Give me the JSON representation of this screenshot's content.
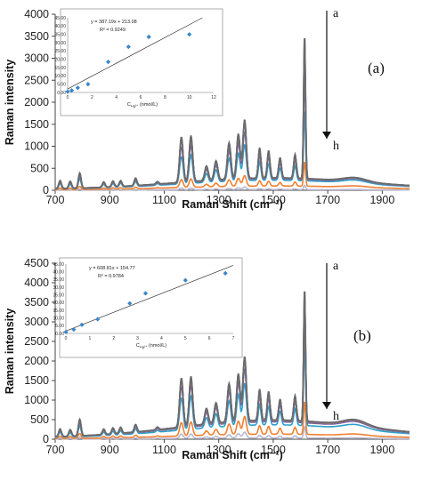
{
  "chart_data": [
    {
      "type": "line",
      "panel_label": "(a)",
      "xlabel": "Raman Shift (cm⁻¹)",
      "ylabel": "Raman intensity",
      "xlim": [
        700,
        2000
      ],
      "ylim": [
        0,
        4000
      ],
      "x_ticks": [
        "700",
        "900",
        "1100",
        "1300",
        "1500",
        "1700",
        "1900"
      ],
      "y_ticks": [
        "0",
        "500",
        "1000",
        "1500",
        "2000",
        "2500",
        "3000",
        "3500",
        "4000"
      ],
      "arrow_top": "a",
      "arrow_bottom": "h",
      "peaks_cm": [
        718,
        755,
        790,
        878,
        912,
        940,
        995,
        1075,
        1163,
        1198,
        1255,
        1290,
        1338,
        1372,
        1395,
        1450,
        1483,
        1525,
        1580,
        1615
      ],
      "series": [
        {
          "color": "#b8b8d0",
          "peak_heights": [
            10,
            8,
            20,
            8,
            8,
            8,
            8,
            4,
            40,
            40,
            12,
            15,
            30,
            40,
            60,
            25,
            20,
            15,
            18,
            100
          ],
          "baseline": 15
        },
        {
          "color": "#f08030",
          "peak_heights": [
            40,
            35,
            70,
            25,
            30,
            30,
            35,
            12,
            180,
            190,
            60,
            80,
            150,
            180,
            240,
            120,
            110,
            80,
            95,
            560
          ],
          "baseline": 90
        },
        {
          "color": "#2ca0c8",
          "peak_heights": [
            120,
            100,
            220,
            80,
            90,
            90,
            110,
            40,
            620,
            640,
            200,
            270,
            520,
            620,
            820,
            420,
            380,
            280,
            330,
            1620
          ],
          "baseline": 210
        },
        {
          "color": "#7b5ea7",
          "peak_heights": [
            150,
            130,
            280,
            100,
            110,
            110,
            140,
            50,
            820,
            840,
            270,
            350,
            670,
            820,
            1080,
            550,
            500,
            370,
            440,
            2420
          ],
          "baseline": 240
        },
        {
          "color": "#8fb53c",
          "peak_heights": [
            170,
            150,
            320,
            115,
            125,
            125,
            160,
            55,
            960,
            980,
            310,
            410,
            780,
            950,
            1250,
            640,
            580,
            430,
            510,
            2980
          ],
          "baseline": 255
        },
        {
          "color": "#c8403c",
          "peak_heights": [
            175,
            155,
            330,
            118,
            128,
            128,
            165,
            57,
            990,
            1010,
            320,
            420,
            800,
            980,
            1290,
            660,
            600,
            445,
            525,
            3150
          ],
          "baseline": 258
        },
        {
          "color": "#4a7ab8",
          "peak_heights": [
            180,
            160,
            340,
            120,
            130,
            130,
            170,
            58,
            1020,
            1040,
            330,
            430,
            820,
            1010,
            1320,
            680,
            615,
            455,
            540,
            3280
          ],
          "baseline": 260
        },
        {
          "color": "#6a6a6a",
          "peak_heights": [
            182,
            162,
            345,
            122,
            132,
            132,
            172,
            59,
            1030,
            1050,
            333,
            435,
            830,
            1020,
            1335,
            688,
            620,
            460,
            545,
            3300
          ],
          "baseline": 262
        }
      ],
      "inset": {
        "equation": "y = 387.19x + 213.08",
        "r2": "R² = 0.9249",
        "xlabel": "C",
        "xlabel_sub": "Hg²⁺",
        "xlabel_unit": "(nmol/L)",
        "xlim": [
          0,
          12
        ],
        "ylim": [
          0,
          4500
        ],
        "x_ticks": [
          "0",
          "2",
          "4",
          "6",
          "8",
          "10",
          "12"
        ],
        "y_ticks": [
          "0.00",
          "500",
          "1000",
          "1500",
          "2000",
          "2500",
          "3000",
          "3500",
          "4000",
          "4500"
        ],
        "y_tick_labels": [
          "0.00",
          "5.00",
          "10.00",
          "15.00",
          "20.00",
          "25.00",
          "30.00",
          "35.00",
          "40.00",
          "45.00"
        ],
        "slope": 387.19,
        "intercept": 213.08,
        "points": [
          [
            0.0,
            50
          ],
          [
            0.33,
            120
          ],
          [
            0.83,
            280
          ],
          [
            1.67,
            500
          ],
          [
            3.33,
            1840
          ],
          [
            5.0,
            2750
          ],
          [
            6.67,
            3350
          ],
          [
            10.0,
            3500
          ]
        ]
      }
    },
    {
      "type": "line",
      "panel_label": "(b)",
      "xlabel": "Raman Shift (cm⁻¹)",
      "ylabel": "Raman intensity",
      "xlim": [
        700,
        2000
      ],
      "ylim": [
        0,
        4500
      ],
      "x_ticks": [
        "700",
        "900",
        "1100",
        "1300",
        "1500",
        "1700",
        "1900"
      ],
      "y_ticks": [
        "0",
        "500",
        "1000",
        "1500",
        "2000",
        "2500",
        "3000",
        "3500",
        "4000",
        "4500"
      ],
      "arrow_top": "a",
      "arrow_bottom": "h",
      "peaks_cm": [
        718,
        755,
        790,
        878,
        912,
        940,
        995,
        1075,
        1163,
        1198,
        1255,
        1290,
        1338,
        1372,
        1395,
        1450,
        1483,
        1525,
        1580,
        1615
      ],
      "series": [
        {
          "color": "#b8b8d0",
          "peak_heights": [
            20,
            18,
            45,
            15,
            15,
            15,
            18,
            8,
            110,
            110,
            35,
            45,
            85,
            110,
            150,
            70,
            60,
            45,
            55,
            300
          ],
          "baseline": 30
        },
        {
          "color": "#f08030",
          "peak_heights": [
            60,
            50,
            120,
            40,
            45,
            45,
            55,
            20,
            340,
            350,
            110,
            140,
            270,
            340,
            460,
            220,
            200,
            150,
            175,
            850
          ],
          "baseline": 120
        },
        {
          "color": "#2ca0c8",
          "peak_heights": [
            130,
            110,
            270,
            90,
            100,
            100,
            125,
            45,
            820,
            840,
            260,
            340,
            650,
            800,
            1080,
            520,
            480,
            350,
            420,
            2050
          ],
          "baseline": 340
        },
        {
          "color": "#7b5ea7",
          "peak_heights": [
            165,
            140,
            350,
            115,
            130,
            130,
            160,
            58,
            1050,
            1070,
            340,
            440,
            830,
            1020,
            1380,
            670,
            610,
            450,
            540,
            2650
          ],
          "baseline": 410
        },
        {
          "color": "#8fb53c",
          "peak_heights": [
            185,
            160,
            400,
            130,
            145,
            145,
            180,
            65,
            1180,
            1200,
            380,
            490,
            930,
            1150,
            1550,
            750,
            690,
            505,
            605,
            3050
          ],
          "baseline": 440
        },
        {
          "color": "#c8403c",
          "peak_heights": [
            190,
            165,
            410,
            134,
            149,
            149,
            185,
            67,
            1210,
            1230,
            390,
            505,
            955,
            1180,
            1590,
            770,
            708,
            518,
            620,
            3250
          ],
          "baseline": 446
        },
        {
          "color": "#4a7ab8",
          "peak_heights": [
            195,
            170,
            420,
            138,
            153,
            153,
            190,
            69,
            1240,
            1260,
            400,
            518,
            980,
            1210,
            1630,
            790,
            725,
            530,
            635,
            3400
          ],
          "baseline": 452
        },
        {
          "color": "#6a6a6a",
          "peak_heights": [
            197,
            172,
            425,
            140,
            155,
            155,
            192,
            70,
            1250,
            1270,
            403,
            522,
            988,
            1220,
            1645,
            797,
            731,
            535,
            640,
            3430
          ],
          "baseline": 455
        }
      ],
      "inset": {
        "equation": "y = 608.81x + 154.77",
        "r2": "R² = 0.9784",
        "xlabel": "C",
        "xlabel_sub": "Hg²⁺",
        "xlabel_unit": "(nmol/L)",
        "xlim": [
          0,
          7
        ],
        "ylim": [
          0,
          4500
        ],
        "x_ticks": [
          "0",
          "1",
          "2",
          "3",
          "4",
          "5",
          "6",
          "7"
        ],
        "y_ticks": [
          "0.00",
          "500",
          "1000",
          "1500",
          "2000",
          "2500",
          "3000",
          "3500",
          "4000",
          "4500"
        ],
        "y_tick_labels": [
          "0.00",
          "5.00",
          "10.00",
          "15.00",
          "20.00",
          "25.00",
          "30.00",
          "35.00",
          "40.00",
          "45.00"
        ],
        "slope": 608.81,
        "intercept": 154.77,
        "points": [
          [
            0.0,
            90
          ],
          [
            0.33,
            250
          ],
          [
            0.67,
            560
          ],
          [
            1.33,
            920
          ],
          [
            2.67,
            1950
          ],
          [
            3.33,
            2600
          ],
          [
            5.0,
            3450
          ],
          [
            6.67,
            3900
          ]
        ]
      }
    }
  ]
}
